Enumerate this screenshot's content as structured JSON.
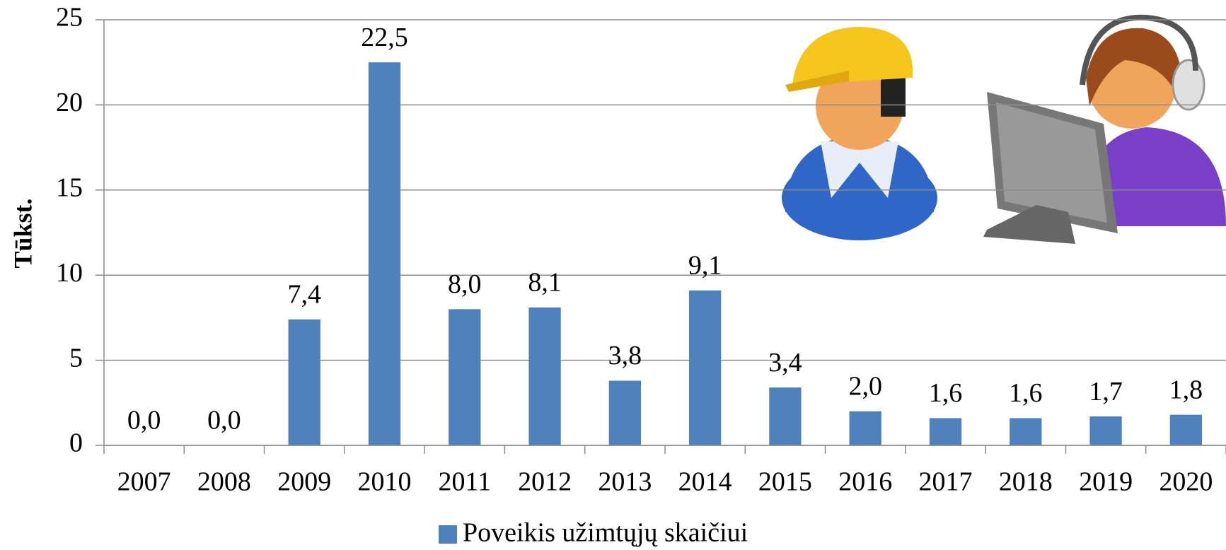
{
  "chart_data": {
    "type": "bar",
    "y_label": "Tūkst.",
    "categories": [
      "2007",
      "2008",
      "2009",
      "2010",
      "2011",
      "2012",
      "2013",
      "2014",
      "2015",
      "2016",
      "2017",
      "2018",
      "2019",
      "2020"
    ],
    "series": [
      {
        "name": "Poveikis užimtųjų skaičiui",
        "color": "#4f81bd",
        "values": [
          0.0,
          0.0,
          7.4,
          22.5,
          8.0,
          8.1,
          3.8,
          9.1,
          3.4,
          2.0,
          1.6,
          1.6,
          1.7,
          1.8
        ],
        "value_labels": [
          "0,0",
          "0,0",
          "7,4",
          "22,5",
          "8,0",
          "8,1",
          "3,8",
          "9,1",
          "3,4",
          "2,0",
          "1,6",
          "1,6",
          "1,7",
          "1,8"
        ]
      }
    ],
    "ylim": [
      0,
      25
    ],
    "yticks": [
      0,
      5,
      10,
      15,
      20,
      25
    ],
    "grid": true,
    "legend": "bottom"
  }
}
